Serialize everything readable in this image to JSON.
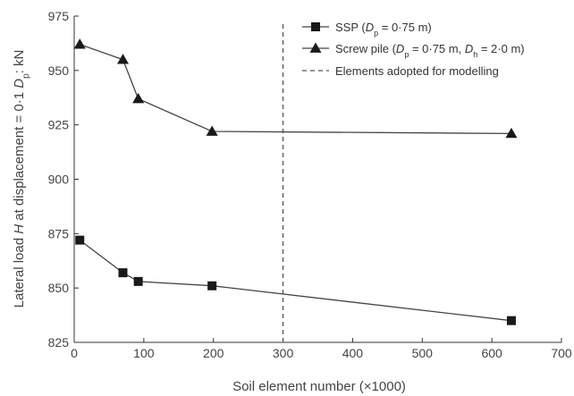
{
  "chart_data": {
    "type": "line",
    "xlabel": "Soil element number (×1000)",
    "ylabel": {
      "pre": "Lateral load ",
      "var": "H",
      "mid": " at displacement = 0·1 ",
      "sym": "D",
      "sub": "p",
      "post": ": kN"
    },
    "xlim": [
      0,
      700
    ],
    "ylim": [
      825,
      975
    ],
    "xticks": [
      0,
      100,
      200,
      300,
      400,
      500,
      600,
      700
    ],
    "yticks": [
      825,
      850,
      875,
      900,
      925,
      950,
      975
    ],
    "xtick_labels": [
      "0",
      "100",
      "200",
      "300",
      "400",
      "500",
      "600",
      "700"
    ],
    "ytick_labels": [
      "825",
      "850",
      "875",
      "900",
      "925",
      "950",
      "975"
    ],
    "series": [
      {
        "name": "SSP (D_p = 0·75 m)",
        "marker": "square",
        "x": [
          8,
          70,
          92,
          198,
          628
        ],
        "y": [
          872,
          857,
          853,
          851,
          835
        ]
      },
      {
        "name": "Screw pile (D_p = 0·75 m, D_h = 2·0 m)",
        "marker": "triangle",
        "x": [
          8,
          70,
          92,
          198,
          628
        ],
        "y": [
          962,
          955,
          937,
          922,
          921
        ]
      }
    ],
    "reference_line": {
      "x": 300,
      "style": "dashed",
      "label": "Elements adopted for modelling"
    },
    "legend": {
      "placement": "top-right",
      "entries": [
        {
          "key": "ssp",
          "parts": [
            {
              "t": "SSP ("
            },
            {
              "t": "D",
              "it": true
            },
            {
              "t": "p",
              "sub": true
            },
            {
              "t": " = 0·75 m)"
            }
          ]
        },
        {
          "key": "screw",
          "parts": [
            {
              "t": "Screw pile ("
            },
            {
              "t": "D",
              "it": true
            },
            {
              "t": "p",
              "sub": true
            },
            {
              "t": " = 0·75 m, "
            },
            {
              "t": "D",
              "it": true
            },
            {
              "t": "h",
              "sub": true
            },
            {
              "t": " = 2·0 m)"
            }
          ]
        },
        {
          "key": "ref",
          "parts": [
            {
              "t": "Elements adopted for modelling"
            }
          ]
        }
      ]
    },
    "grid": false
  }
}
